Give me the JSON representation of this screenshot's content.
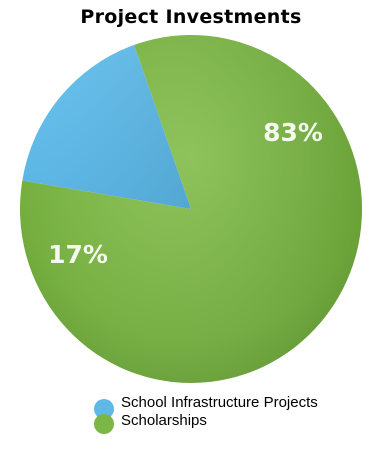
{
  "chart_data": {
    "type": "pie",
    "title": "Project Investments",
    "slices": [
      {
        "label": "School Infrastructure Projects",
        "value": 17,
        "display": "17%",
        "color": "#5fb8e6"
      },
      {
        "label": "Scholarships",
        "value": 83,
        "display": "83%",
        "color": "#7cb646"
      }
    ],
    "legend_position": "bottom"
  }
}
